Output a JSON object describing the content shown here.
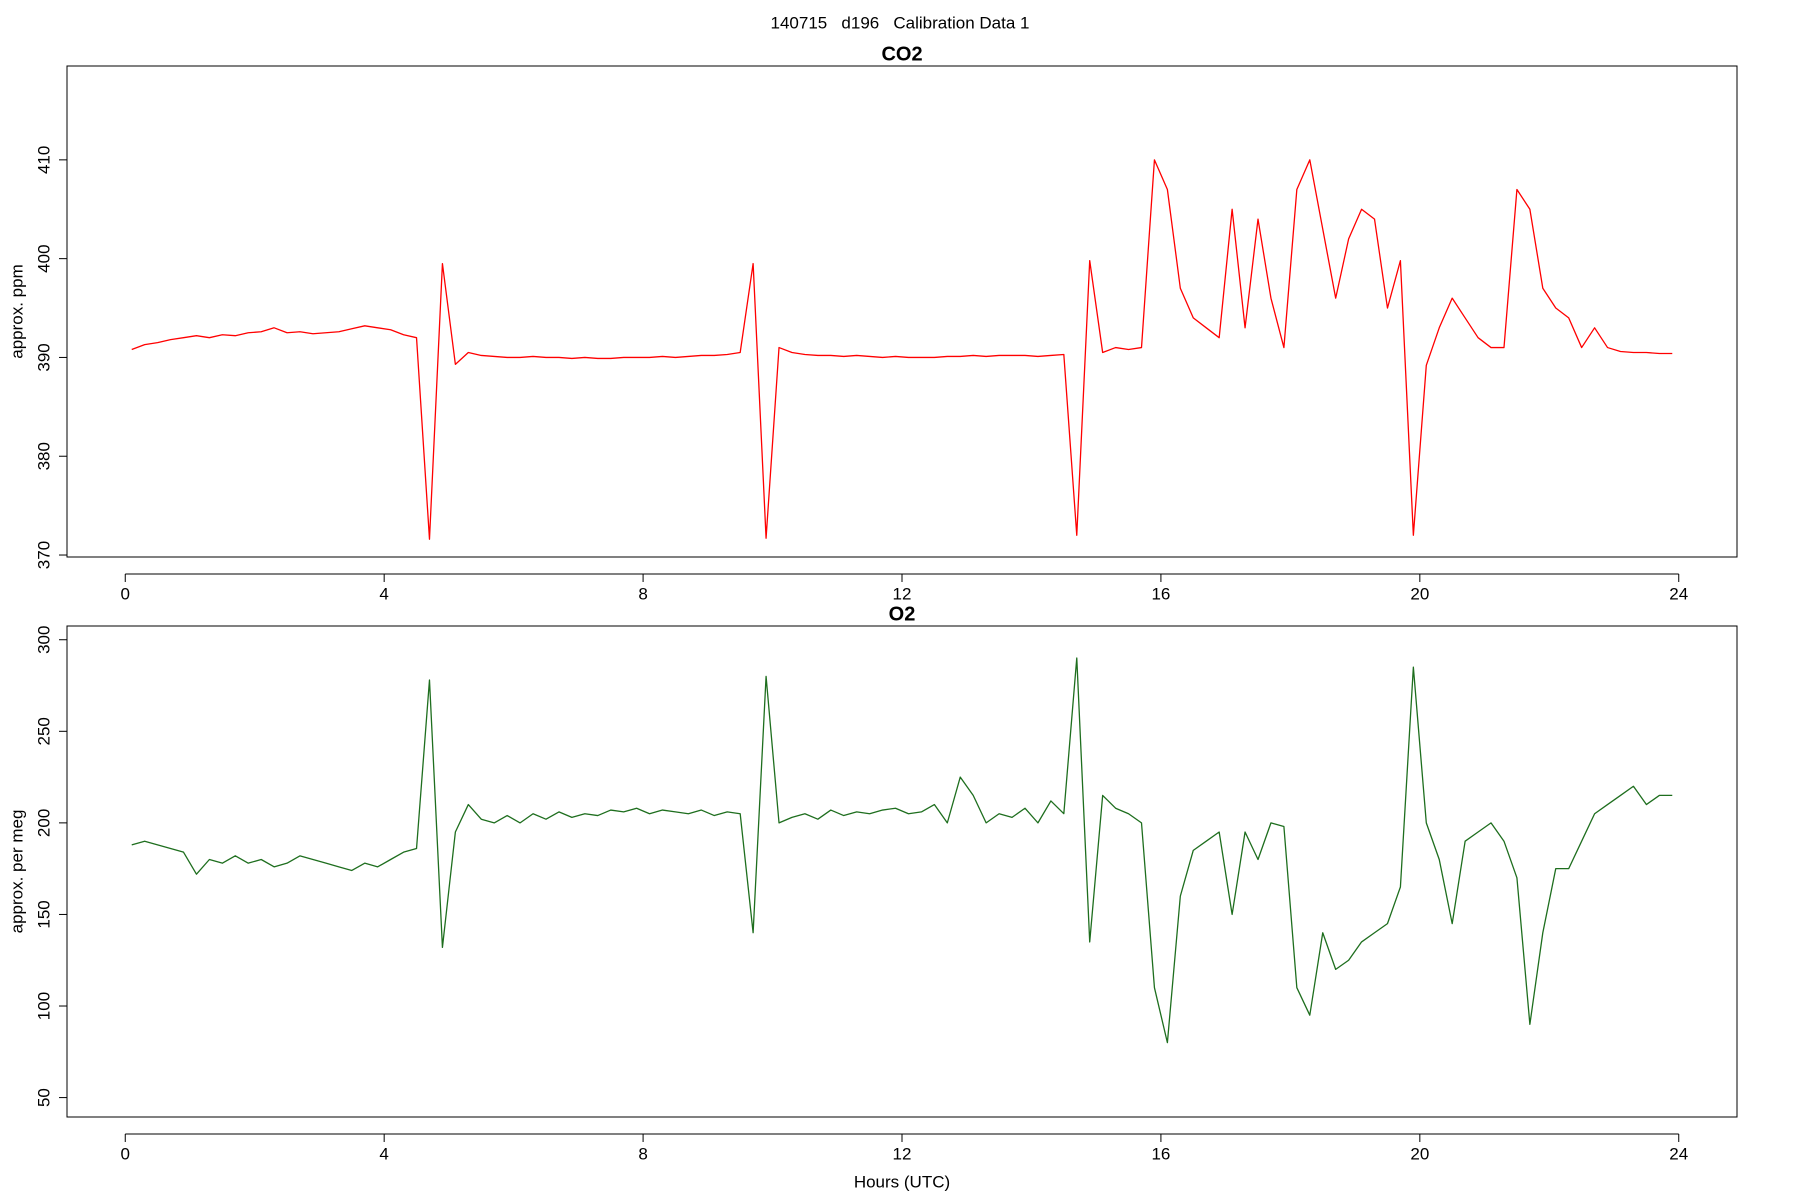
{
  "title": "140715   d196   Calibration Data 1",
  "chart_data": [
    {
      "type": "line",
      "title": "CO2",
      "ylabel": "approx. ppm",
      "color": "#ff0000",
      "xlim": [
        -0.9,
        24.9
      ],
      "xticks": [
        0,
        4,
        8,
        12,
        16,
        20,
        24
      ],
      "ylim": [
        369.8,
        419.5
      ],
      "yticks": [
        370,
        380,
        390,
        400,
        410
      ],
      "x": [
        0.1,
        0.3,
        0.5,
        0.7,
        0.9,
        1.1,
        1.3,
        1.5,
        1.7,
        1.9,
        2.1,
        2.3,
        2.5,
        2.7,
        2.9,
        3.1,
        3.3,
        3.5,
        3.7,
        3.9,
        4.1,
        4.3,
        4.5,
        4.7,
        4.9,
        5.1,
        5.3,
        5.5,
        5.7,
        5.9,
        6.1,
        6.3,
        6.5,
        6.7,
        6.9,
        7.1,
        7.3,
        7.5,
        7.7,
        7.9,
        8.1,
        8.3,
        8.5,
        8.7,
        8.9,
        9.1,
        9.3,
        9.5,
        9.7,
        9.9,
        10.1,
        10.3,
        10.5,
        10.7,
        10.9,
        11.1,
        11.3,
        11.5,
        11.7,
        11.9,
        12.1,
        12.3,
        12.5,
        12.7,
        12.9,
        13.1,
        13.3,
        13.5,
        13.7,
        13.9,
        14.1,
        14.3,
        14.5,
        14.7,
        14.9,
        15.1,
        15.3,
        15.5,
        15.7,
        15.9,
        16.1,
        16.3,
        16.5,
        16.7,
        16.9,
        17.1,
        17.3,
        17.5,
        17.7,
        17.9,
        18.1,
        18.3,
        18.5,
        18.7,
        18.9,
        19.1,
        19.3,
        19.5,
        19.7,
        19.9,
        20.1,
        20.3,
        20.5,
        20.7,
        20.9,
        21.1,
        21.3,
        21.5,
        21.7,
        21.9,
        22.1,
        22.3,
        22.5,
        22.7,
        22.9,
        23.1,
        23.3,
        23.5,
        23.7,
        23.9
      ],
      "values": [
        390.8,
        391.3,
        391.5,
        391.8,
        392.0,
        392.2,
        392.0,
        392.3,
        392.2,
        392.5,
        392.6,
        393.0,
        392.5,
        392.6,
        392.4,
        392.5,
        392.6,
        392.9,
        393.2,
        393.0,
        392.8,
        392.3,
        392.0,
        371.6,
        399.5,
        389.3,
        390.5,
        390.2,
        390.1,
        390.0,
        390.0,
        390.1,
        390.0,
        390.0,
        389.9,
        390.0,
        389.9,
        389.9,
        390.0,
        390.0,
        390.0,
        390.1,
        390.0,
        390.1,
        390.2,
        390.2,
        390.3,
        390.5,
        399.5,
        371.7,
        391.0,
        390.5,
        390.3,
        390.2,
        390.2,
        390.1,
        390.2,
        390.1,
        390.0,
        390.1,
        390.0,
        390.0,
        390.0,
        390.1,
        390.1,
        390.2,
        390.1,
        390.2,
        390.2,
        390.2,
        390.1,
        390.2,
        390.3,
        372.0,
        399.8,
        390.5,
        391.0,
        390.8,
        391.0,
        410.0,
        407,
        397,
        394,
        393,
        392,
        405,
        393,
        404,
        396,
        391,
        407,
        410,
        403,
        396,
        402,
        405,
        404,
        395,
        399.8,
        372,
        389.2,
        393,
        396,
        394,
        392,
        391,
        391,
        407,
        405,
        397,
        395,
        394,
        391,
        393,
        391,
        390.6,
        390.5,
        390.5,
        390.4,
        390.4
      ]
    },
    {
      "type": "line",
      "title": "O2",
      "ylabel": "approx. per meg",
      "xlabel": "Hours (UTC)",
      "color": "#1e6e1e",
      "xlim": [
        -0.9,
        24.9
      ],
      "xticks": [
        0,
        4,
        8,
        12,
        16,
        20,
        24
      ],
      "ylim": [
        39.4,
        307.5
      ],
      "yticks": [
        50,
        100,
        150,
        200,
        250,
        300
      ],
      "x": [
        0.1,
        0.3,
        0.5,
        0.7,
        0.9,
        1.1,
        1.3,
        1.5,
        1.7,
        1.9,
        2.1,
        2.3,
        2.5,
        2.7,
        2.9,
        3.1,
        3.3,
        3.5,
        3.7,
        3.9,
        4.1,
        4.3,
        4.5,
        4.7,
        4.9,
        5.1,
        5.3,
        5.5,
        5.7,
        5.9,
        6.1,
        6.3,
        6.5,
        6.7,
        6.9,
        7.1,
        7.3,
        7.5,
        7.7,
        7.9,
        8.1,
        8.3,
        8.5,
        8.7,
        8.9,
        9.1,
        9.3,
        9.5,
        9.7,
        9.9,
        10.1,
        10.3,
        10.5,
        10.7,
        10.9,
        11.1,
        11.3,
        11.5,
        11.7,
        11.9,
        12.1,
        12.3,
        12.5,
        12.7,
        12.9,
        13.1,
        13.3,
        13.5,
        13.7,
        13.9,
        14.1,
        14.3,
        14.5,
        14.7,
        14.9,
        15.1,
        15.3,
        15.5,
        15.7,
        15.9,
        16.1,
        16.3,
        16.5,
        16.7,
        16.9,
        17.1,
        17.3,
        17.5,
        17.7,
        17.9,
        18.1,
        18.3,
        18.5,
        18.7,
        18.9,
        19.1,
        19.3,
        19.5,
        19.7,
        19.9,
        20.1,
        20.3,
        20.5,
        20.7,
        20.9,
        21.1,
        21.3,
        21.5,
        21.7,
        21.9,
        22.1,
        22.3,
        22.5,
        22.7,
        22.9,
        23.1,
        23.3,
        23.5,
        23.7,
        23.9
      ],
      "values": [
        188,
        190,
        188,
        186,
        184,
        172,
        180,
        178,
        182,
        178,
        180,
        176,
        178,
        182,
        180,
        178,
        176,
        174,
        178,
        176,
        180,
        184,
        186,
        278,
        132,
        195,
        210,
        202,
        200,
        204,
        200,
        205,
        202,
        206,
        203,
        205,
        204,
        207,
        206,
        208,
        205,
        207,
        206,
        205,
        207,
        204,
        206,
        205,
        140,
        280,
        200,
        203,
        205,
        202,
        207,
        204,
        206,
        205,
        207,
        208,
        205,
        206,
        210,
        200,
        225,
        215,
        200,
        205,
        203,
        208,
        200,
        212,
        205,
        290,
        135,
        215,
        208,
        205,
        200,
        110,
        80,
        160,
        185,
        190,
        195,
        150,
        195,
        180,
        200,
        198,
        110,
        95,
        140,
        120,
        125,
        135,
        140,
        145,
        165,
        285,
        200,
        180,
        145,
        190,
        195,
        200,
        190,
        170,
        90,
        140,
        175,
        175,
        190,
        205,
        210,
        215,
        220,
        210,
        215,
        215
      ]
    }
  ]
}
